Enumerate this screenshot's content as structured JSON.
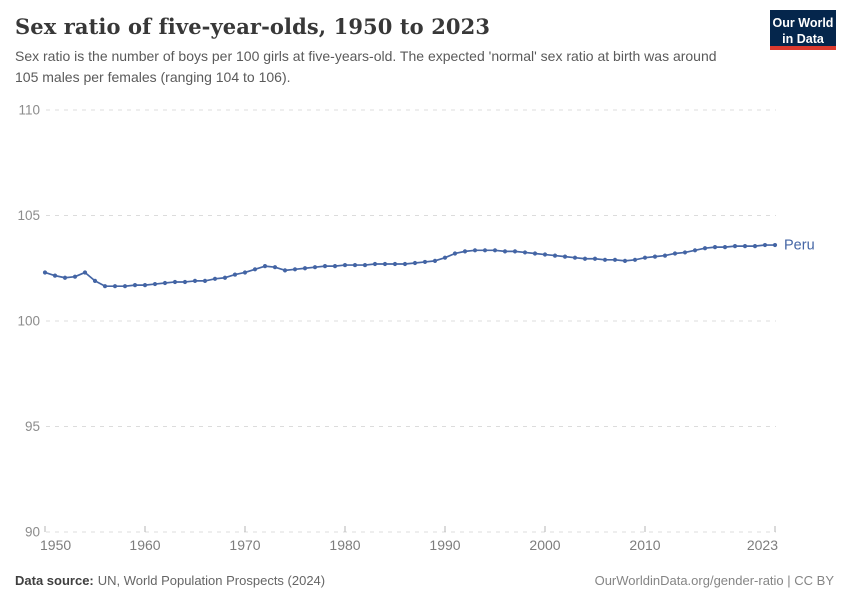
{
  "header": {
    "title": "Sex ratio of five-year-olds, 1950 to 2023",
    "subtitle": "Sex ratio is the number of boys per 100 girls at five-years-old. The expected 'normal' sex ratio at birth was around 105 males per females (ranging 104 to 106)."
  },
  "logo": {
    "line1": "Our World",
    "line2": "in Data",
    "bg_color": "#05264c",
    "accent_color": "#dc3a2e"
  },
  "chart_data": {
    "type": "line",
    "title": "Sex ratio of five-year-olds, 1950 to 2023",
    "xlabel": "",
    "ylabel": "",
    "xlim": [
      1950,
      2023
    ],
    "ylim": [
      90,
      110
    ],
    "y_ticks": [
      90,
      95,
      100,
      105,
      110
    ],
    "x_ticks": [
      1950,
      1960,
      1970,
      1980,
      1990,
      2000,
      2010,
      2023
    ],
    "grid": "horizontal-dashed",
    "legend_position": "end-of-line-label",
    "series": [
      {
        "name": "Peru",
        "color": "#4465a5",
        "start_year": 1950,
        "end_year": 2023,
        "values": [
          102.3,
          102.15,
          102.05,
          102.1,
          102.3,
          101.9,
          101.65,
          101.65,
          101.65,
          101.7,
          101.7,
          101.75,
          101.8,
          101.85,
          101.85,
          101.9,
          101.9,
          102.0,
          102.05,
          102.2,
          102.3,
          102.45,
          102.6,
          102.55,
          102.4,
          102.45,
          102.5,
          102.55,
          102.6,
          102.6,
          102.65,
          102.65,
          102.65,
          102.7,
          102.7,
          102.7,
          102.7,
          102.75,
          102.8,
          102.85,
          103.0,
          103.2,
          103.3,
          103.35,
          103.35,
          103.35,
          103.3,
          103.3,
          103.25,
          103.2,
          103.15,
          103.1,
          103.05,
          103.0,
          102.95,
          102.95,
          102.9,
          102.9,
          102.85,
          102.9,
          103.0,
          103.05,
          103.1,
          103.2,
          103.25,
          103.35,
          103.45,
          103.5,
          103.5,
          103.55,
          103.55,
          103.55,
          103.6,
          103.6
        ]
      }
    ]
  },
  "footer": {
    "source_label": "Data source:",
    "source_text": "UN, World Population Prospects (2024)",
    "right_text": "OurWorldinData.org/gender-ratio | CC BY"
  }
}
